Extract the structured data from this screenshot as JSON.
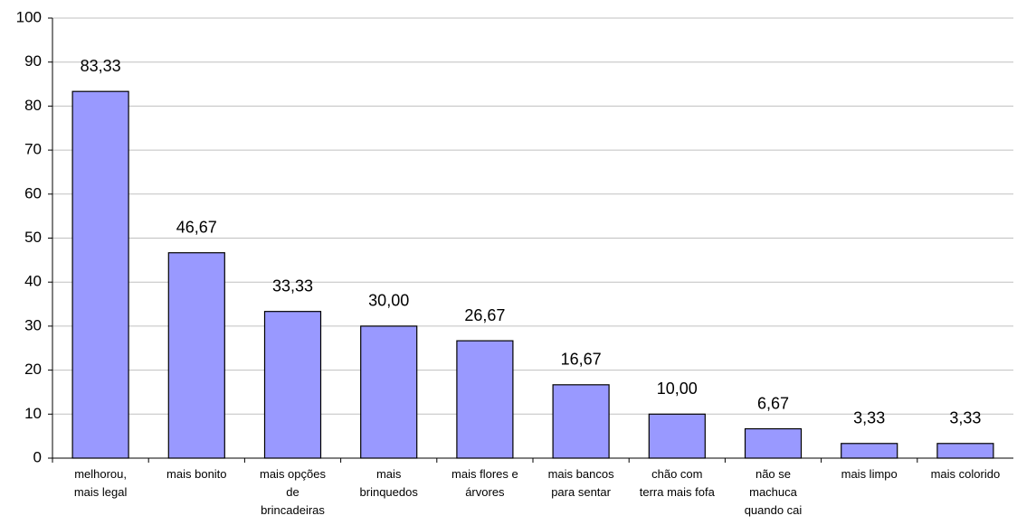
{
  "chart_data": {
    "type": "bar",
    "categories": [
      "melhorou, mais legal",
      "mais bonito",
      "mais opções de brincadeiras",
      "mais brinquedos",
      "mais flores e árvores",
      "mais bancos para sentar",
      "chão com terra mais fofa",
      "não se machuca quando cai",
      "mais limpo",
      "mais colorido"
    ],
    "values": [
      83.33,
      46.67,
      33.33,
      30.0,
      26.67,
      16.67,
      10.0,
      6.67,
      3.33,
      3.33
    ],
    "value_labels": [
      "83,33",
      "46,67",
      "33,33",
      "30,00",
      "26,67",
      "16,67",
      "10,00",
      "6,67",
      "3,33",
      "3,33"
    ],
    "color": "#9999ff",
    "ylim": [
      0,
      100
    ],
    "yticks": [
      0,
      10,
      20,
      30,
      40,
      50,
      60,
      70,
      80,
      90,
      100
    ],
    "grid": true
  }
}
